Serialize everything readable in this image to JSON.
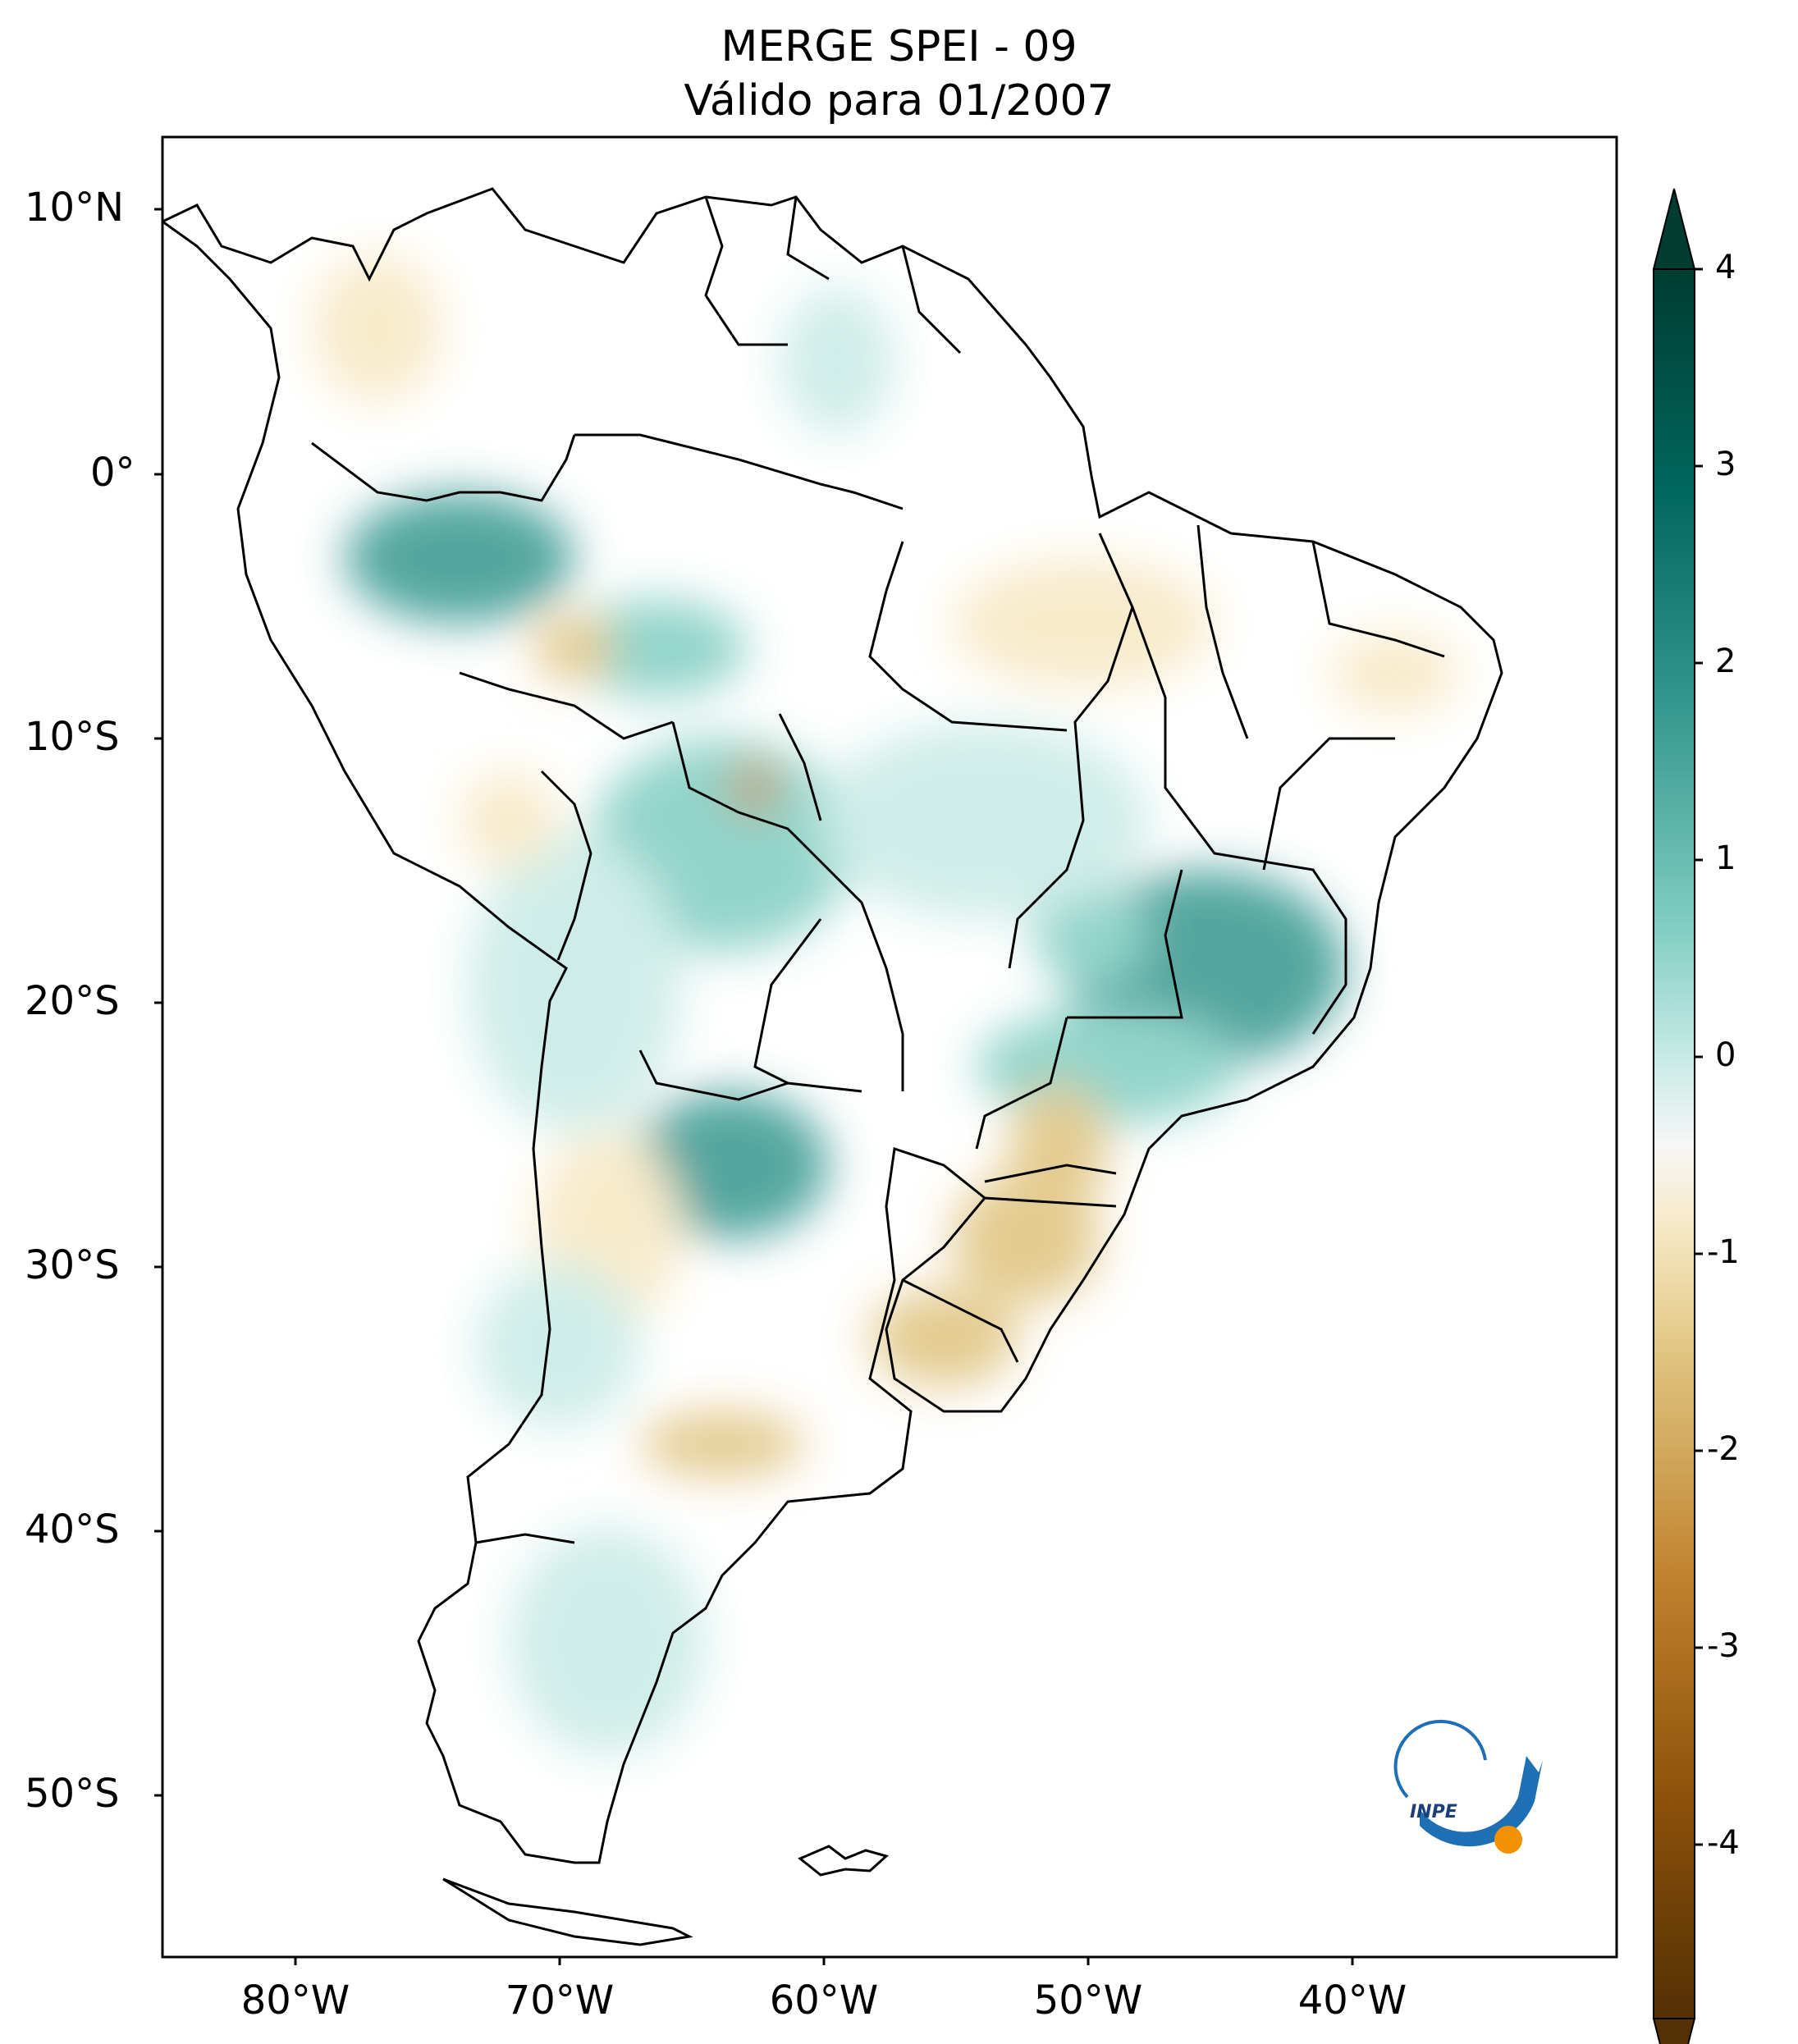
{
  "title": {
    "line1": "MERGE   SPEI - 09",
    "line2": "Válido para 01/2007"
  },
  "axes": {
    "lat_labels": [
      "10°N",
      "0°",
      "10°S",
      "20°S",
      "30°S",
      "40°S",
      "50°S"
    ],
    "lon_labels": [
      "80°W",
      "70°W",
      "60°W",
      "50°W",
      "40°W"
    ],
    "lat_range_deg": [
      -56,
      13
    ],
    "lon_range_deg": [
      -85,
      -30
    ]
  },
  "colorbar": {
    "ticks": [
      "4",
      "3",
      "2",
      "1",
      "0",
      "-1",
      "-2",
      "-3",
      "-4"
    ],
    "range": [
      -4,
      4
    ],
    "extend": "both",
    "colormap": "BrBG",
    "colors": {
      "min": "#543005",
      "low": "#bf812d",
      "midlow": "#f6e8c3",
      "mid": "#ffffff",
      "midhigh": "#c7eae5",
      "high": "#35978f",
      "max": "#003c30"
    }
  },
  "logo": {
    "text": "INPE",
    "colors": {
      "arc": "#1f6fb5",
      "dot": "#f39200"
    }
  }
}
